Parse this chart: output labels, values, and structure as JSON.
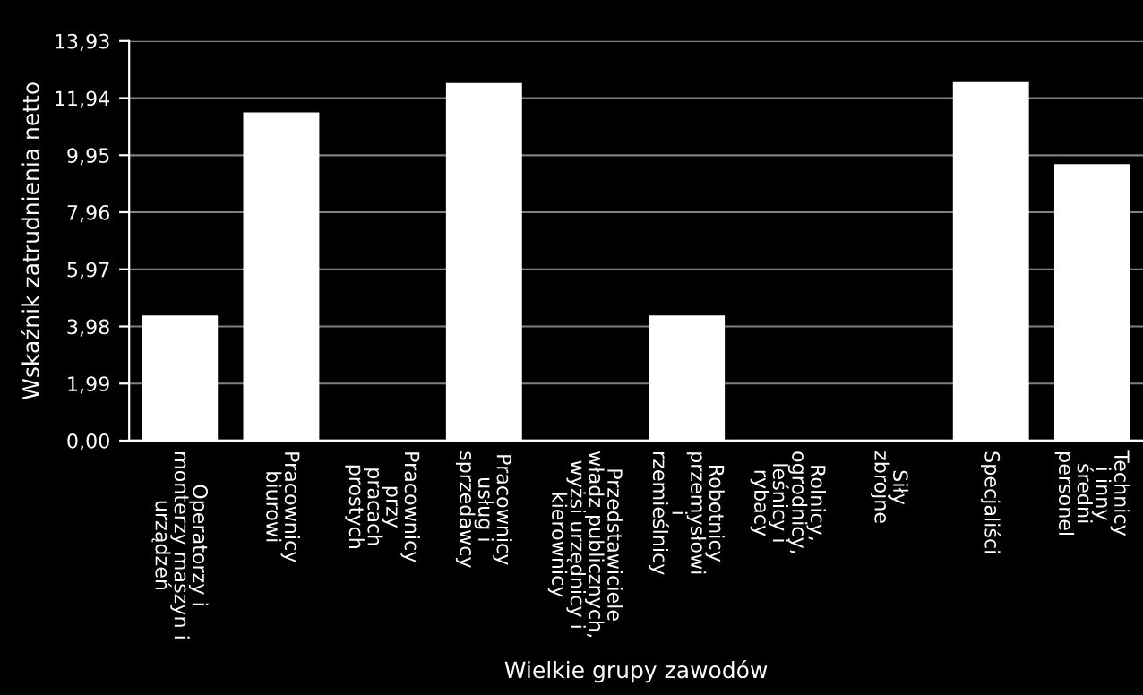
{
  "chart_data": {
    "type": "bar",
    "xlabel": "Wielkie grupy zawodów",
    "ylabel": "Wskaźnik zatrudnienia netto",
    "categories": [
      "Operatorzy i\nmonterzy maszyn i\nurządzeń",
      "Pracownicy\nbiurowi",
      "Pracownicy\nprzy\npracach\nprostych",
      "Pracownicy\nusług i\nsprzedawcy",
      "Przedstawiciele\nwładz publicznych,\nwyżsi urzędnicy i\nkierownicy",
      "Robotnicy\nprzemysłowi\ni\nrzemieślnicy",
      "Rolnicy,\nogrodnicy,\nleśnicy i\nrybacy",
      "Siły\nzbrojne",
      "Specjaliści",
      "Technicy\ni inny\nśredni\npersonel"
    ],
    "values": [
      4.36,
      11.44,
      0,
      12.46,
      0,
      4.36,
      0,
      0,
      12.53,
      9.64
    ],
    "color": "#ffffff",
    "ylim": [
      0,
      13.93
    ],
    "yticks": [
      {
        "value": 0,
        "label": "0,00"
      },
      {
        "value": 1.99,
        "label": "1,99"
      },
      {
        "value": 3.98,
        "label": "3,98"
      },
      {
        "value": 5.97,
        "label": "5,97"
      },
      {
        "value": 7.96,
        "label": "7,96"
      },
      {
        "value": 9.95,
        "label": "9,95"
      },
      {
        "value": 11.94,
        "label": "11,94"
      },
      {
        "value": 13.93,
        "label": "13,93"
      }
    ],
    "grid": "y"
  }
}
